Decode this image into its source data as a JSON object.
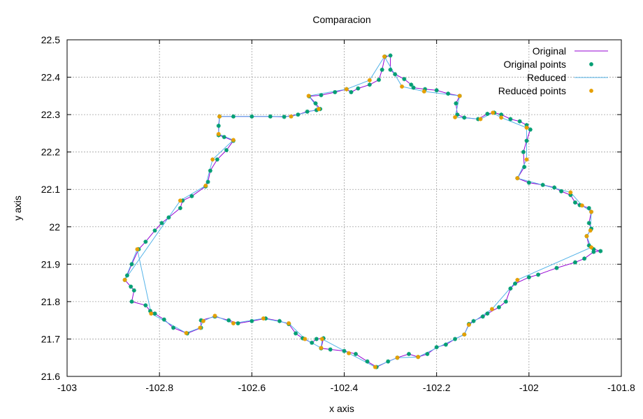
{
  "chart_data": {
    "type": "line",
    "title": "Comparacion",
    "xlabel": "x axis",
    "ylabel": "y axis",
    "xlim": [
      -103,
      -101.8
    ],
    "ylim": [
      21.6,
      22.5
    ],
    "xticks": [
      -103,
      -102.8,
      -102.6,
      -102.4,
      -102.2,
      -102,
      -101.8
    ],
    "yticks": [
      21.6,
      21.7,
      21.8,
      21.9,
      22,
      22.1,
      22.2,
      22.3,
      22.4,
      22.5
    ],
    "xtick_labels": [
      "-103",
      "-102.8",
      "-102.6",
      "-102.4",
      "-102.2",
      "-102",
      "-101.8"
    ],
    "ytick_labels": [
      "21.6",
      "21.7",
      "21.8",
      "21.9",
      "22",
      "22.1",
      "22.2",
      "22.3",
      "22.4",
      "22.5"
    ],
    "grid": true,
    "legend_position": "top-right",
    "legend": [
      {
        "label": "Original",
        "kind": "line",
        "color": "#9400d3"
      },
      {
        "label": "Original points",
        "kind": "points",
        "color": "#009e73"
      },
      {
        "label": "Reduced",
        "kind": "line",
        "color": "#56b4e9"
      },
      {
        "label": "Reduced points",
        "kind": "points",
        "color": "#e69f00"
      }
    ],
    "series": [
      {
        "name": "Original points",
        "color": "#009e73",
        "points": [
          [
            -102.67,
            22.295
          ],
          [
            -102.64,
            22.295
          ],
          [
            -102.6,
            22.295
          ],
          [
            -102.56,
            22.295
          ],
          [
            -102.53,
            22.294
          ],
          [
            -102.5,
            22.3
          ],
          [
            -102.48,
            22.308
          ],
          [
            -102.46,
            22.312
          ],
          [
            -102.452,
            22.315
          ],
          [
            -102.462,
            22.33
          ],
          [
            -102.476,
            22.349
          ],
          [
            -102.45,
            22.352
          ],
          [
            -102.42,
            22.36
          ],
          [
            -102.395,
            22.368
          ],
          [
            -102.385,
            22.36
          ],
          [
            -102.37,
            22.37
          ],
          [
            -102.345,
            22.38
          ],
          [
            -102.325,
            22.393
          ],
          [
            -102.318,
            22.42
          ],
          [
            -102.312,
            22.455
          ],
          [
            -102.3,
            22.458
          ],
          [
            -102.3,
            22.42
          ],
          [
            -102.29,
            22.408
          ],
          [
            -102.27,
            22.395
          ],
          [
            -102.255,
            22.38
          ],
          [
            -102.25,
            22.372
          ],
          [
            -102.225,
            22.368
          ],
          [
            -102.2,
            22.365
          ],
          [
            -102.175,
            22.356
          ],
          [
            -102.15,
            22.35
          ],
          [
            -102.158,
            22.33
          ],
          [
            -102.155,
            22.3
          ],
          [
            -102.14,
            22.292
          ],
          [
            -102.11,
            22.288
          ],
          [
            -102.09,
            22.302
          ],
          [
            -102.075,
            22.305
          ],
          [
            -102.06,
            22.3
          ],
          [
            -102.04,
            22.288
          ],
          [
            -102.02,
            22.282
          ],
          [
            -102.005,
            22.272
          ],
          [
            -101.997,
            22.26
          ],
          [
            -102.005,
            22.23
          ],
          [
            -102.012,
            22.2
          ],
          [
            -102.01,
            22.16
          ],
          [
            -102.025,
            22.13
          ],
          [
            -102.0,
            22.118
          ],
          [
            -101.97,
            22.112
          ],
          [
            -101.945,
            22.105
          ],
          [
            -101.93,
            22.095
          ],
          [
            -101.91,
            22.085
          ],
          [
            -101.9,
            22.065
          ],
          [
            -101.89,
            22.058
          ],
          [
            -101.87,
            22.05
          ],
          [
            -101.865,
            22.04
          ],
          [
            -101.87,
            22.01
          ],
          [
            -101.865,
            21.995
          ],
          [
            -101.875,
            21.975
          ],
          [
            -101.87,
            21.95
          ],
          [
            -101.86,
            21.94
          ],
          [
            -101.845,
            21.935
          ],
          [
            -101.86,
            21.933
          ],
          [
            -101.88,
            21.915
          ],
          [
            -101.9,
            21.905
          ],
          [
            -101.94,
            21.89
          ],
          [
            -101.98,
            21.872
          ],
          [
            -102.0,
            21.865
          ],
          [
            -102.03,
            21.848
          ],
          [
            -102.04,
            21.835
          ],
          [
            -102.05,
            21.8
          ],
          [
            -102.065,
            21.785
          ],
          [
            -102.09,
            21.768
          ],
          [
            -102.1,
            21.76
          ],
          [
            -102.12,
            21.748
          ],
          [
            -102.13,
            21.74
          ],
          [
            -102.14,
            21.712
          ],
          [
            -102.16,
            21.7
          ],
          [
            -102.18,
            21.685
          ],
          [
            -102.2,
            21.678
          ],
          [
            -102.22,
            21.66
          ],
          [
            -102.24,
            21.652
          ],
          [
            -102.26,
            21.66
          ],
          [
            -102.285,
            21.65
          ],
          [
            -102.305,
            21.64
          ],
          [
            -102.33,
            21.625
          ],
          [
            -102.35,
            21.64
          ],
          [
            -102.375,
            21.66
          ],
          [
            -102.4,
            21.668
          ],
          [
            -102.43,
            21.672
          ],
          [
            -102.45,
            21.675
          ],
          [
            -102.445,
            21.702
          ],
          [
            -102.46,
            21.7
          ],
          [
            -102.47,
            21.69
          ],
          [
            -102.49,
            21.702
          ],
          [
            -102.505,
            21.715
          ],
          [
            -102.52,
            21.74
          ],
          [
            -102.54,
            21.748
          ],
          [
            -102.57,
            21.755
          ],
          [
            -102.6,
            21.748
          ],
          [
            -102.63,
            21.742
          ],
          [
            -102.65,
            21.75
          ],
          [
            -102.68,
            21.76
          ],
          [
            -102.71,
            21.75
          ],
          [
            -102.71,
            21.73
          ],
          [
            -102.74,
            21.715
          ],
          [
            -102.77,
            21.73
          ],
          [
            -102.79,
            21.752
          ],
          [
            -102.81,
            21.768
          ],
          [
            -102.82,
            21.775
          ],
          [
            -102.83,
            21.79
          ],
          [
            -102.86,
            21.8
          ],
          [
            -102.855,
            21.83
          ],
          [
            -102.862,
            21.84
          ],
          [
            -102.875,
            21.858
          ],
          [
            -102.87,
            21.87
          ],
          [
            -102.86,
            21.9
          ],
          [
            -102.845,
            21.94
          ],
          [
            -102.83,
            21.96
          ],
          [
            -102.81,
            21.99
          ],
          [
            -102.795,
            22.01
          ],
          [
            -102.78,
            22.025
          ],
          [
            -102.755,
            22.05
          ],
          [
            -102.75,
            22.07
          ],
          [
            -102.73,
            22.082
          ],
          [
            -102.7,
            22.108
          ],
          [
            -102.695,
            22.12
          ],
          [
            -102.69,
            22.15
          ],
          [
            -102.675,
            22.18
          ],
          [
            -102.655,
            22.205
          ],
          [
            -102.64,
            22.23
          ],
          [
            -102.66,
            22.24
          ],
          [
            -102.672,
            22.245
          ],
          [
            -102.672,
            22.27
          ]
        ]
      },
      {
        "name": "Reduced points",
        "color": "#e69f00",
        "points": [
          [
            -102.67,
            22.295
          ],
          [
            -102.515,
            22.295
          ],
          [
            -102.455,
            22.315
          ],
          [
            -102.477,
            22.35
          ],
          [
            -102.395,
            22.368
          ],
          [
            -102.345,
            22.392
          ],
          [
            -102.313,
            22.455
          ],
          [
            -102.275,
            22.375
          ],
          [
            -102.227,
            22.362
          ],
          [
            -102.15,
            22.35
          ],
          [
            -102.16,
            22.293
          ],
          [
            -102.105,
            22.288
          ],
          [
            -102.078,
            22.305
          ],
          [
            -102.06,
            22.292
          ],
          [
            -102.005,
            22.265
          ],
          [
            -102.005,
            22.18
          ],
          [
            -102.025,
            22.13
          ],
          [
            -101.91,
            22.092
          ],
          [
            -101.885,
            22.057
          ],
          [
            -101.865,
            22.04
          ],
          [
            -101.867,
            21.99
          ],
          [
            -101.875,
            21.975
          ],
          [
            -101.865,
            21.945
          ],
          [
            -102.025,
            21.858
          ],
          [
            -102.08,
            21.78
          ],
          [
            -102.13,
            21.738
          ],
          [
            -102.14,
            21.712
          ],
          [
            -102.24,
            21.652
          ],
          [
            -102.285,
            21.65
          ],
          [
            -102.333,
            21.625
          ],
          [
            -102.39,
            21.662
          ],
          [
            -102.448,
            21.7
          ],
          [
            -102.45,
            21.676
          ],
          [
            -102.485,
            21.7
          ],
          [
            -102.52,
            21.742
          ],
          [
            -102.575,
            21.755
          ],
          [
            -102.64,
            21.742
          ],
          [
            -102.68,
            21.762
          ],
          [
            -102.705,
            21.748
          ],
          [
            -102.712,
            21.73
          ],
          [
            -102.742,
            21.716
          ],
          [
            -102.818,
            21.768
          ],
          [
            -102.848,
            21.94
          ],
          [
            -102.875,
            21.858
          ],
          [
            -102.755,
            22.07
          ],
          [
            -102.7,
            22.11
          ],
          [
            -102.685,
            22.18
          ],
          [
            -102.64,
            22.232
          ],
          [
            -102.672,
            22.248
          ]
        ]
      }
    ]
  }
}
